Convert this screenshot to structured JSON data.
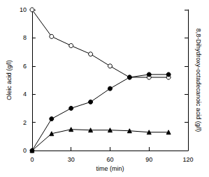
{
  "chart_data": {
    "type": "line",
    "xlabel": "time (min)",
    "ylabel": "Oleic acid (g/l)",
    "y2label": "8,8-Dihydroxy-octadecanoic acid (g/l)",
    "x": [
      0,
      15,
      30,
      45,
      60,
      75,
      90,
      105
    ],
    "series": [
      {
        "color": "#000000",
        "marker": "circle-open",
        "values": [
          10,
          8.1,
          7.45,
          6.85,
          6.0,
          5.2,
          5.2,
          5.2
        ]
      },
      {
        "color": "#000000",
        "marker": "circle",
        "axis": "y2",
        "values": [
          0,
          2.25,
          3.0,
          3.45,
          4.4,
          5.2,
          5.4,
          5.4
        ]
      },
      {
        "color": "#000000",
        "marker": "triangle",
        "axis": "y2",
        "values": [
          0,
          1.2,
          1.5,
          1.45,
          1.45,
          1.4,
          1.3,
          1.3
        ]
      }
    ],
    "xlim": [
      0,
      120
    ],
    "xticks": [
      0,
      30,
      60,
      90,
      120
    ],
    "ylim": [
      0,
      10
    ],
    "yticks": [
      0,
      2,
      4,
      6,
      8,
      10
    ],
    "y2lim": [
      0,
      10
    ],
    "y2ticks": [
      0,
      2,
      4,
      6,
      8,
      10
    ],
    "tick_labels": "y",
    "grid": false
  }
}
